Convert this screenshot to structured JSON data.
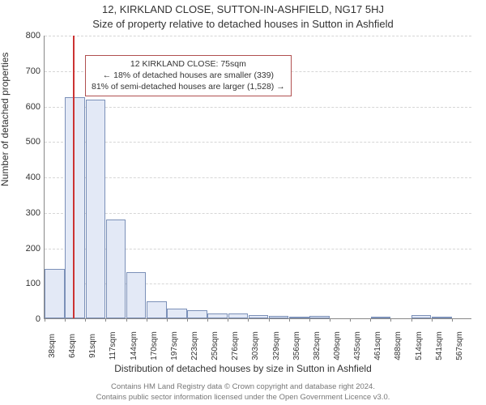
{
  "title_line1": "12, KIRKLAND CLOSE, SUTTON-IN-ASHFIELD, NG17 5HJ",
  "title_line2": "Size of property relative to detached houses in Sutton in Ashfield",
  "y_axis_label": "Number of detached properties",
  "x_axis_label": "Distribution of detached houses by size in Sutton in Ashfield",
  "footer_line1": "Contains HM Land Registry data © Crown copyright and database right 2024.",
  "footer_line2": "Contains public sector information licensed under the Open Government Licence v3.0.",
  "chart": {
    "type": "histogram",
    "ylim": [
      0,
      800
    ],
    "ytick_step": 100,
    "x_start": 38,
    "bin_width_sqm": 26.4,
    "xtick_labels": [
      "38sqm",
      "64sqm",
      "91sqm",
      "117sqm",
      "144sqm",
      "170sqm",
      "197sqm",
      "223sqm",
      "250sqm",
      "276sqm",
      "303sqm",
      "329sqm",
      "356sqm",
      "382sqm",
      "409sqm",
      "435sqm",
      "461sqm",
      "488sqm",
      "514sqm",
      "541sqm",
      "567sqm"
    ],
    "values": [
      140,
      625,
      618,
      280,
      130,
      48,
      27,
      22,
      13,
      13,
      9,
      6,
      2,
      6,
      0,
      0,
      3,
      0,
      10,
      5,
      0
    ],
    "bar_fill": "#e3e9f6",
    "bar_stroke": "#7b90b8",
    "grid_color": "#d6d6d6",
    "background_color": "#ffffff",
    "marker_sqm": 75,
    "marker_color": "#cc3333"
  },
  "callout": {
    "line1": "12 KIRKLAND CLOSE: 75sqm",
    "line2": "← 18% of detached houses are smaller (339)",
    "line3": "81% of semi-detached houses are larger (1,528) →",
    "border_color": "#b05050"
  }
}
